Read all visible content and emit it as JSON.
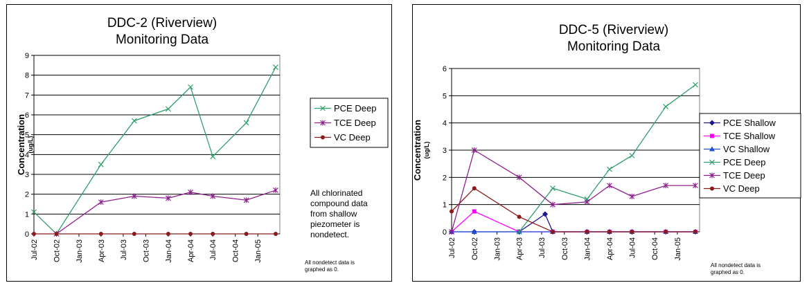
{
  "chart_data": [
    {
      "type": "line",
      "title_lines": [
        "DDC-2 (Riverview)",
        "Monitoring Data"
      ],
      "ylabel": "Concentration",
      "ylabel_unit": "(ug/L)",
      "ylim": [
        0,
        9
      ],
      "yticks": [
        0,
        1,
        2,
        3,
        4,
        5,
        6,
        7,
        8,
        9
      ],
      "xlim": [
        "2002-07-01",
        "2005-04-01"
      ],
      "xticks": [
        "Jul-02",
        "Oct-02",
        "Jan-03",
        "Apr-03",
        "Jul-03",
        "Oct-03",
        "Jan-04",
        "Apr-04",
        "Jul-04",
        "Oct-04",
        "Jan-05"
      ],
      "grid": true,
      "legend_position": "right",
      "series": [
        {
          "name": "PCE Deep",
          "color": "#2f9e6b",
          "marker": "x",
          "x": [
            "2002-07-01",
            "2002-10-01",
            "2003-04-01",
            "2003-08-15",
            "2004-01-01",
            "2004-04-01",
            "2004-07-01",
            "2004-11-15",
            "2005-03-15"
          ],
          "values": [
            1.1,
            0,
            3.5,
            5.7,
            6.3,
            7.4,
            3.9,
            5.6,
            8.4
          ]
        },
        {
          "name": "TCE Deep",
          "color": "#8e1f8e",
          "marker": "star",
          "x": [
            "2002-10-01",
            "2003-04-01",
            "2003-08-15",
            "2004-01-01",
            "2004-04-01",
            "2004-07-01",
            "2004-11-15",
            "2005-03-15"
          ],
          "values": [
            0,
            1.6,
            1.9,
            1.8,
            2.1,
            1.9,
            1.7,
            2.2
          ]
        },
        {
          "name": "VC Deep",
          "color": "#8b1a1a",
          "marker": "circle",
          "x": [
            "2002-07-01",
            "2002-10-01",
            "2003-04-01",
            "2003-08-15",
            "2004-01-01",
            "2004-04-01",
            "2004-07-01",
            "2004-11-15",
            "2005-03-15"
          ],
          "values": [
            0,
            0,
            0,
            0,
            0,
            0,
            0,
            0,
            0
          ]
        }
      ],
      "note_lines": [
        "All chlorinated",
        "compound data",
        "from shallow",
        "piezometer is",
        "nondetect."
      ],
      "footnote_lines": [
        "All nondetect data is",
        "graphed as 0."
      ]
    },
    {
      "type": "line",
      "title_lines": [
        "DDC-5 (Riverview)",
        "Monitoring Data"
      ],
      "ylabel": "Concentration",
      "ylabel_unit": "(ug/L)",
      "ylim": [
        0,
        6
      ],
      "yticks": [
        0,
        1,
        2,
        3,
        4,
        5,
        6
      ],
      "xlim": [
        "2002-07-01",
        "2005-04-01"
      ],
      "xticks": [
        "Jul-02",
        "Oct-02",
        "Jan-03",
        "Apr-03",
        "Jul-03",
        "Oct-03",
        "Jan-04",
        "Apr-04",
        "Jul-04",
        "Oct-04",
        "Jan-05"
      ],
      "grid": true,
      "legend_position": "right",
      "series": [
        {
          "name": "PCE Shallow",
          "color": "#1a1a8c",
          "marker": "diamond",
          "x": [
            "2002-07-01",
            "2002-10-01",
            "2003-04-01",
            "2003-07-15",
            "2003-08-15",
            "2004-01-01",
            "2004-04-01",
            "2004-07-01",
            "2004-11-15",
            "2005-03-15"
          ],
          "values": [
            0,
            0,
            0,
            0.65,
            0,
            0,
            0,
            0,
            0,
            0
          ]
        },
        {
          "name": "TCE Shallow",
          "color": "#ff00ff",
          "marker": "square",
          "x": [
            "2002-07-01",
            "2002-10-01",
            "2003-04-01",
            "2003-08-15",
            "2004-01-01",
            "2004-04-01",
            "2004-07-01",
            "2004-11-15",
            "2005-03-15"
          ],
          "values": [
            0,
            0.75,
            0,
            0,
            0,
            0,
            0,
            0,
            0
          ]
        },
        {
          "name": "VC Shallow",
          "color": "#1f4fd6",
          "marker": "triangle",
          "x": [
            "2002-07-01",
            "2002-10-01",
            "2003-04-01",
            "2003-08-15",
            "2004-01-01",
            "2004-04-01",
            "2004-07-01",
            "2004-11-15",
            "2005-03-15"
          ],
          "values": [
            0,
            0,
            0,
            0,
            0,
            0,
            0,
            0,
            0
          ]
        },
        {
          "name": "PCE Deep",
          "color": "#2f9e6b",
          "marker": "x",
          "x": [
            "2003-04-01",
            "2003-08-15",
            "2004-01-01",
            "2004-04-01",
            "2004-07-01",
            "2004-11-15",
            "2005-03-15"
          ],
          "values": [
            0,
            1.6,
            1.2,
            2.3,
            2.8,
            4.6,
            5.4
          ]
        },
        {
          "name": "TCE Deep",
          "color": "#8e1f8e",
          "marker": "star",
          "x": [
            "2002-07-01",
            "2002-10-01",
            "2003-04-01",
            "2003-08-15",
            "2004-01-01",
            "2004-04-01",
            "2004-07-01",
            "2004-11-15",
            "2005-03-15"
          ],
          "values": [
            0,
            3.0,
            2.0,
            1.0,
            1.1,
            1.7,
            1.3,
            1.7,
            1.7
          ]
        },
        {
          "name": "VC Deep",
          "color": "#8b1a1a",
          "marker": "circle",
          "x": [
            "2002-07-01",
            "2002-10-01",
            "2003-04-01",
            "2003-08-15",
            "2004-01-01",
            "2004-04-01",
            "2004-07-01",
            "2004-11-15",
            "2005-03-15"
          ],
          "values": [
            0.75,
            1.6,
            0.55,
            0,
            0,
            0,
            0,
            0,
            0
          ]
        }
      ],
      "footnote_lines": [
        "All nondetect data is",
        "graphed as 0."
      ]
    }
  ]
}
